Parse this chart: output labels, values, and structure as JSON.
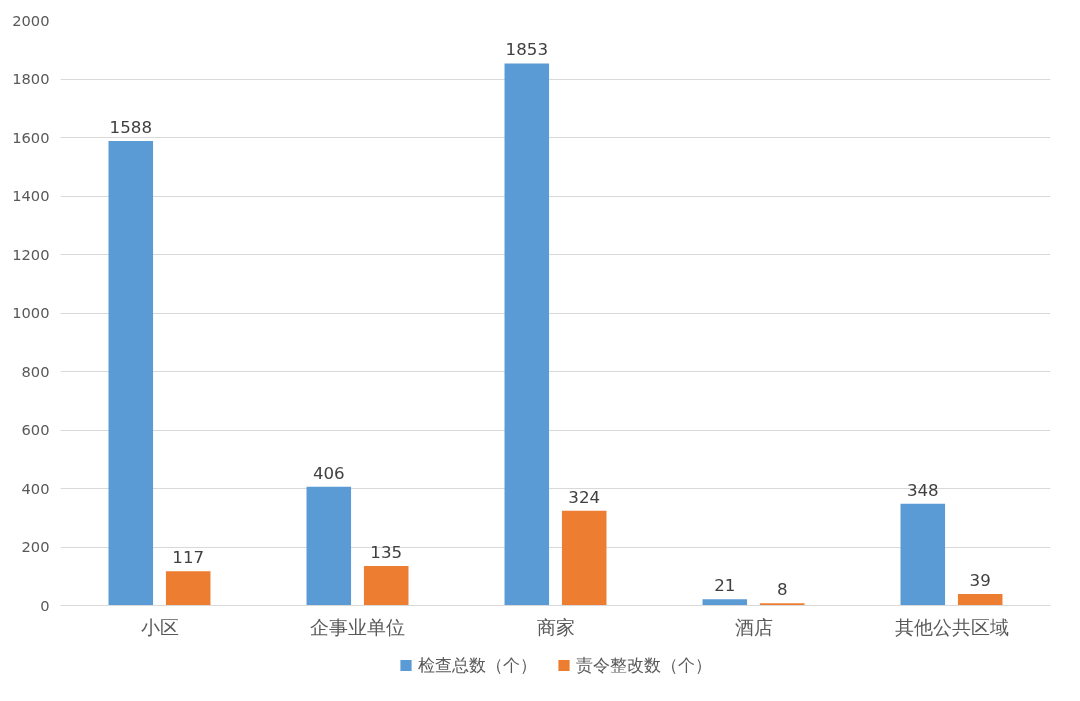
{
  "chart_data": {
    "type": "bar",
    "categories": [
      "小区",
      "企事业单位",
      "商家",
      "酒店",
      "其他公共区域"
    ],
    "series": [
      {
        "name": "检查总数（个）",
        "color": "#5b9bd5",
        "values": [
          1588,
          406,
          1853,
          21,
          348
        ]
      },
      {
        "name": "责令整改数（个）",
        "color": "#ed7d31",
        "values": [
          117,
          135,
          324,
          8,
          39
        ]
      }
    ],
    "ylim": [
      0,
      2000
    ],
    "yticks": [
      0,
      200,
      400,
      600,
      800,
      1000,
      1200,
      1400,
      1600,
      1800,
      2000
    ],
    "grid": "y",
    "legend": "bottom",
    "data_labels": true
  }
}
